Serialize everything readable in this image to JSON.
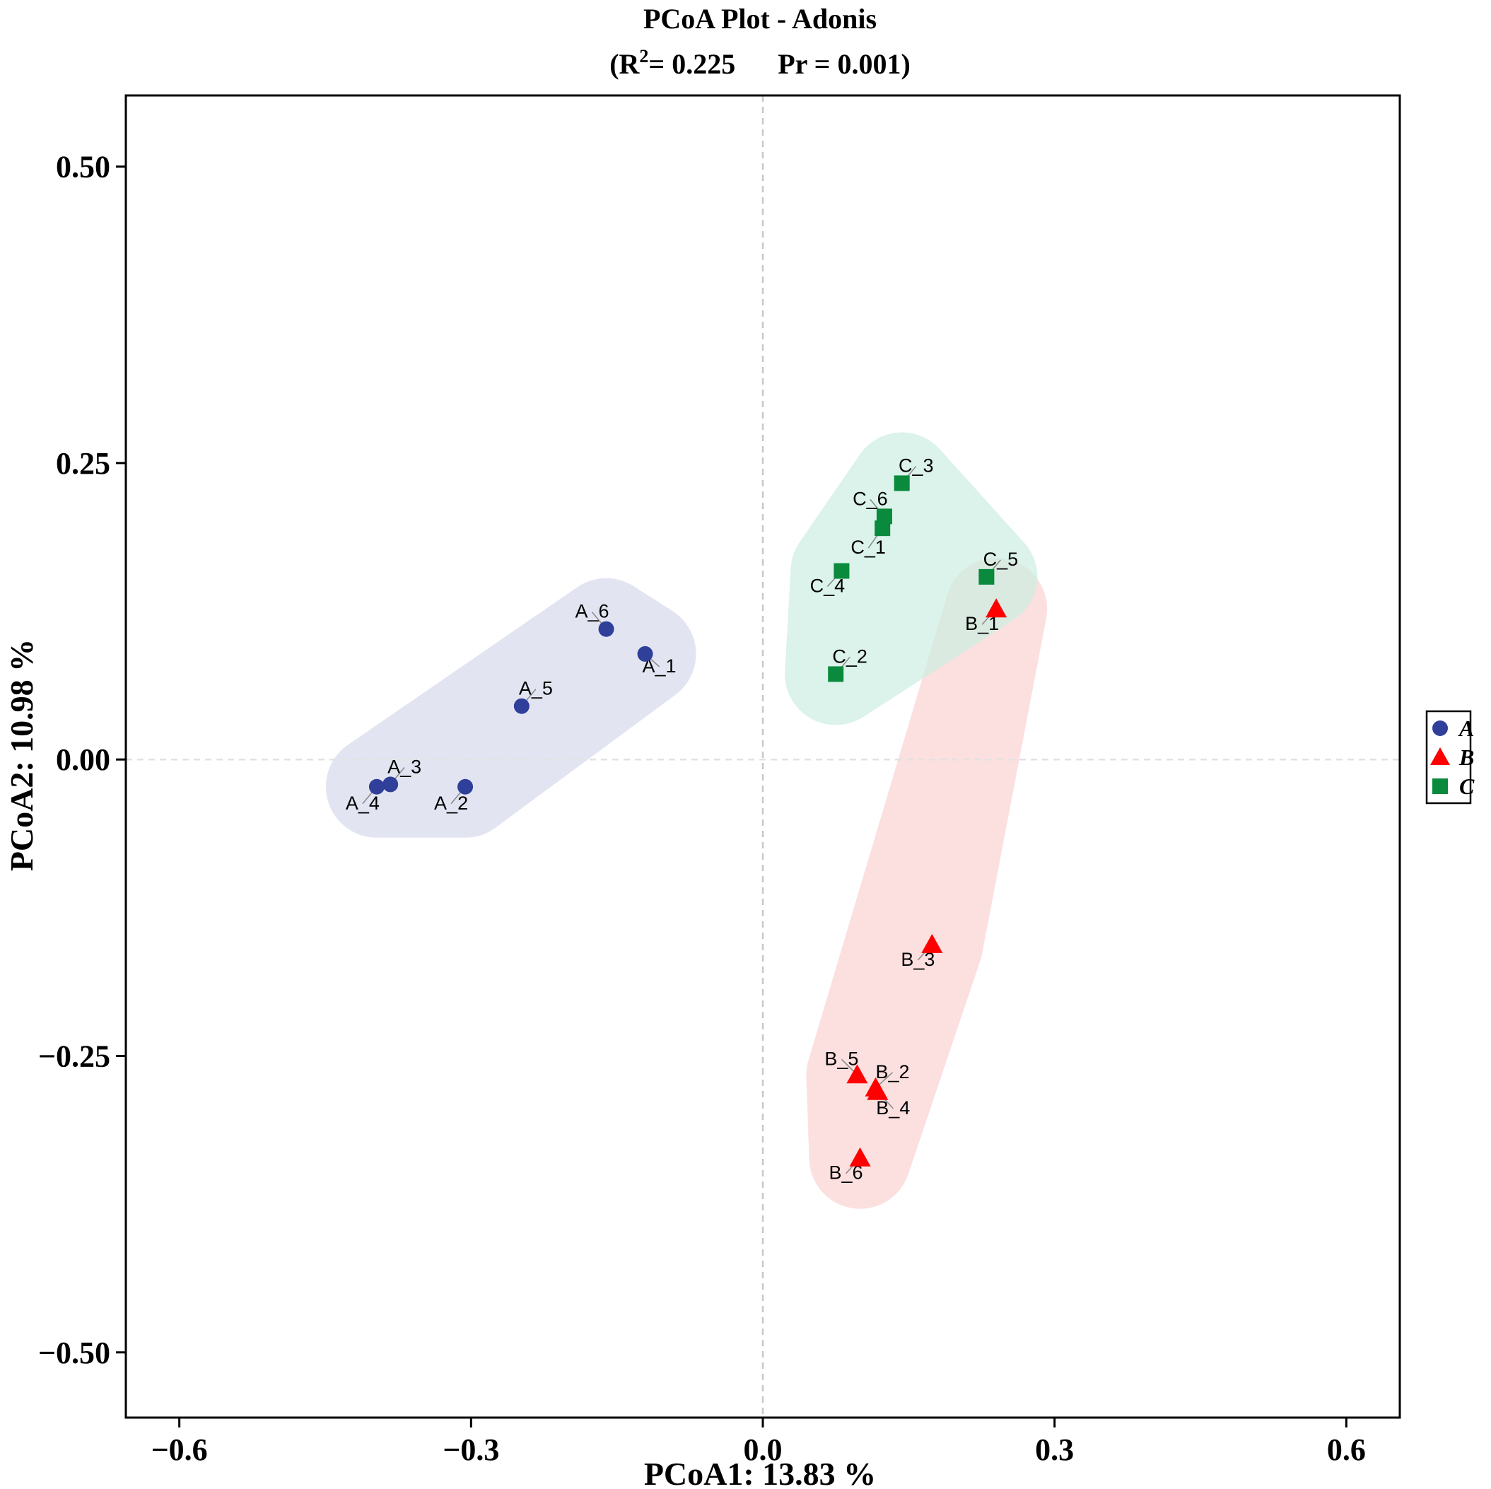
{
  "chart_data": {
    "type": "scatter",
    "title": "PCoA Plot - Adonis",
    "subtitle": {
      "prefix": "(R",
      "sup": "2",
      "r2_text": "= 0.225",
      "pr_text": "Pr = 0.001)"
    },
    "xlabel": "PCoA1:  13.83 %",
    "ylabel": "PCoA2:  10.98 %",
    "xlim": [
      -0.655,
      0.655
    ],
    "ylim": [
      -0.555,
      0.56
    ],
    "xticks": [
      {
        "value": -0.6,
        "label": "−0.6"
      },
      {
        "value": -0.3,
        "label": "−0.3"
      },
      {
        "value": 0.0,
        "label": "0.0"
      },
      {
        "value": 0.3,
        "label": "0.3"
      },
      {
        "value": 0.6,
        "label": "0.6"
      }
    ],
    "yticks": [
      {
        "value": 0.5,
        "label": "0.50"
      },
      {
        "value": 0.25,
        "label": "0.25"
      },
      {
        "value": 0.0,
        "label": "0.00"
      },
      {
        "value": -0.25,
        "label": "−0.25"
      },
      {
        "value": -0.5,
        "label": "−0.50"
      }
    ],
    "reference_lines": {
      "x": 0.0,
      "y": 0.0
    },
    "grid": false,
    "legend_position": "right",
    "series": [
      {
        "name": "A",
        "marker": "circle",
        "color": "#2F3F9A",
        "hull_color": "#D6DBEC",
        "points": [
          {
            "label": "A_1",
            "x": -0.121,
            "y": 0.089
          },
          {
            "label": "A_2",
            "x": -0.306,
            "y": -0.023
          },
          {
            "label": "A_3",
            "x": -0.383,
            "y": -0.021
          },
          {
            "label": "A_4",
            "x": -0.397,
            "y": -0.023
          },
          {
            "label": "A_5",
            "x": -0.248,
            "y": 0.045
          },
          {
            "label": "A_6",
            "x": -0.161,
            "y": 0.11
          }
        ]
      },
      {
        "name": "B",
        "marker": "triangle",
        "color": "#FF0000",
        "hull_color": "#FAD4D2",
        "points": [
          {
            "label": "B_1",
            "x": 0.24,
            "y": 0.127
          },
          {
            "label": "B_2",
            "x": 0.116,
            "y": -0.277
          },
          {
            "label": "B_3",
            "x": 0.174,
            "y": -0.156
          },
          {
            "label": "B_4",
            "x": 0.118,
            "y": -0.28
          },
          {
            "label": "B_5",
            "x": 0.097,
            "y": -0.266
          },
          {
            "label": "B_6",
            "x": 0.1,
            "y": -0.336
          }
        ]
      },
      {
        "name": "C",
        "marker": "square",
        "color": "#0A8A3C",
        "hull_color": "#CDEFE2",
        "points": [
          {
            "label": "C_1",
            "x": 0.123,
            "y": 0.195
          },
          {
            "label": "C_2",
            "x": 0.075,
            "y": 0.072
          },
          {
            "label": "C_3",
            "x": 0.143,
            "y": 0.233
          },
          {
            "label": "C_4",
            "x": 0.081,
            "y": 0.159
          },
          {
            "label": "C_5",
            "x": 0.23,
            "y": 0.154
          },
          {
            "label": "C_6",
            "x": 0.125,
            "y": 0.205
          }
        ]
      }
    ]
  }
}
